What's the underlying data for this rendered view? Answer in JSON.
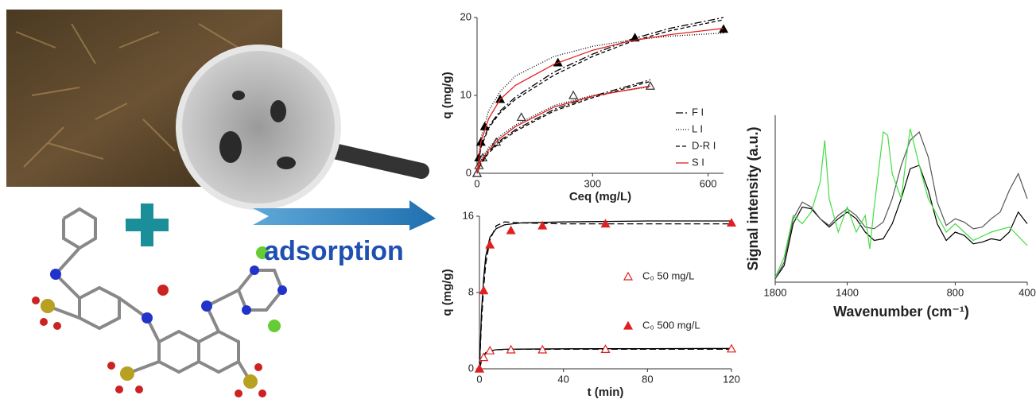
{
  "process_label": "adsorption",
  "chart_data": [
    {
      "type": "scatter",
      "x_label": "Ceq (mg/L)",
      "y_label": "q (mg/g)",
      "xlim": [
        0,
        640
      ],
      "xticks": [
        0,
        300,
        600
      ],
      "ylim": [
        0,
        20
      ],
      "yticks": [
        0,
        10,
        20
      ],
      "points": [
        {
          "marker": "filled-triangle",
          "color": "#000000",
          "x": [
            0,
            5,
            10,
            20,
            60,
            210,
            410,
            640
          ],
          "values": [
            0,
            2,
            4,
            6,
            9.5,
            14.2,
            17.4,
            18.5
          ]
        },
        {
          "marker": "open-triangle",
          "color": "#333333",
          "x": [
            0,
            5,
            15,
            50,
            115,
            250,
            450
          ],
          "values": [
            0,
            1,
            2,
            4,
            7.2,
            10,
            11.2
          ]
        }
      ],
      "series": [
        {
          "name": "F I",
          "color": "#000000",
          "dash": "9 3 2 3",
          "curves": [
            {
              "x": [
                0,
                10,
                30,
                60,
                100,
                200,
                300,
                400,
                500,
                640
              ],
              "values": [
                0,
                3.5,
                6,
                8,
                9.8,
                13,
                15.3,
                17.2,
                18.6,
                20
              ]
            },
            {
              "x": [
                0,
                10,
                30,
                60,
                100,
                200,
                300,
                450
              ],
              "values": [
                0,
                1.3,
                2.8,
                4.2,
                5.6,
                8.2,
                9.9,
                12
              ]
            }
          ]
        },
        {
          "name": "L I",
          "color": "#000000",
          "dash": "1 2",
          "curves": [
            {
              "x": [
                0,
                10,
                30,
                60,
                100,
                200,
                300,
                400,
                500,
                640
              ],
              "values": [
                0,
                4.5,
                8,
                10.5,
                12.5,
                15,
                16.3,
                17.1,
                17.6,
                18
              ]
            },
            {
              "x": [
                0,
                10,
                30,
                60,
                100,
                200,
                300,
                450
              ],
              "values": [
                0,
                1.7,
                3.3,
                4.8,
                6.2,
                8.7,
                10,
                11.1
              ]
            }
          ]
        },
        {
          "name": "D-R I",
          "color": "#000000",
          "dash": "5 3",
          "curves": [
            {
              "x": [
                0,
                10,
                30,
                60,
                100,
                200,
                300,
                400,
                500,
                640
              ],
              "values": [
                0,
                3.3,
                5.8,
                7.8,
                9.5,
                12.6,
                15,
                16.9,
                18.3,
                19.7
              ]
            },
            {
              "x": [
                0,
                10,
                30,
                60,
                100,
                200,
                300,
                450
              ],
              "values": [
                0,
                1.2,
                2.6,
                4,
                5.4,
                8,
                9.7,
                11.8
              ]
            }
          ]
        },
        {
          "name": "S I",
          "color": "#e02020",
          "dash": "none",
          "curves": [
            {
              "x": [
                0,
                10,
                30,
                60,
                100,
                200,
                300,
                400,
                500,
                640
              ],
              "values": [
                0,
                4,
                7,
                9.5,
                11.3,
                14,
                15.8,
                17,
                17.8,
                18.6
              ]
            },
            {
              "x": [
                0,
                10,
                30,
                60,
                100,
                200,
                300,
                450
              ],
              "values": [
                0,
                1.5,
                3,
                4.5,
                6,
                8.5,
                9.9,
                11.2
              ]
            }
          ]
        }
      ]
    },
    {
      "type": "scatter",
      "x_label": "t (min)",
      "y_label": "q (mg/g)",
      "xlim": [
        0,
        120
      ],
      "xticks": [
        0,
        40,
        80,
        120
      ],
      "ylim": [
        0,
        16
      ],
      "yticks": [
        0,
        8,
        16
      ],
      "series": [
        {
          "name": "C₀ 50 mg/L",
          "marker": "open-triangle",
          "color": "#e02020",
          "x": [
            0,
            2,
            5,
            15,
            30,
            60,
            120
          ],
          "values": [
            0,
            1.2,
            1.9,
            2,
            2,
            2.05,
            2.1
          ]
        },
        {
          "name": "C₀ 500 mg/L",
          "marker": "filled-triangle",
          "color": "#e02020",
          "x": [
            0,
            2,
            5,
            15,
            30,
            60,
            120
          ],
          "values": [
            0,
            8.2,
            13,
            14.5,
            15,
            15.2,
            15.3
          ]
        }
      ],
      "fits": [
        {
          "color": "#000000",
          "dash": "none",
          "curves": [
            {
              "x": [
                0,
                1,
                2,
                3,
                5,
                8,
                12,
                20,
                40,
                80,
                120
              ],
              "values": [
                0,
                0.9,
                1.4,
                1.7,
                1.9,
                2,
                2.05,
                2.07,
                2.1,
                2.12,
                2.13
              ]
            },
            {
              "x": [
                0,
                1,
                2,
                3,
                5,
                8,
                12,
                20,
                40,
                80,
                120
              ],
              "values": [
                0,
                6,
                9.5,
                11.8,
                13.8,
                14.7,
                15.1,
                15.3,
                15.4,
                15.5,
                15.5
              ]
            }
          ]
        },
        {
          "color": "#000000",
          "dash": "8 4",
          "curves": [
            {
              "x": [
                0,
                1,
                2,
                3,
                5,
                8,
                12,
                20,
                40,
                80,
                120
              ],
              "values": [
                0,
                0.8,
                1.3,
                1.6,
                1.85,
                2,
                2.03,
                2.05,
                2.06,
                2.06,
                2.06
              ]
            },
            {
              "x": [
                0,
                1,
                2,
                3,
                5,
                8,
                12,
                20,
                40,
                80,
                120
              ],
              "values": [
                0,
                5,
                8.5,
                11,
                13.5,
                15,
                15.4,
                15.3,
                15.2,
                15.2,
                15.2
              ]
            }
          ]
        }
      ]
    },
    {
      "type": "line",
      "x_label": "Wavenumber (cm⁻¹)",
      "y_label": "Signal intensity (a.u.)",
      "xlim": [
        1800,
        400
      ],
      "xticks": [
        1800,
        1400,
        800,
        400
      ],
      "ylim": [
        0,
        1
      ],
      "series": [
        {
          "color": "#000000",
          "x": [
            1800,
            1750,
            1700,
            1650,
            1600,
            1550,
            1500,
            1450,
            1400,
            1350,
            1300,
            1250,
            1200,
            1150,
            1100,
            1050,
            1000,
            950,
            900,
            850,
            800,
            750,
            700,
            650,
            600,
            550,
            500,
            450,
            400
          ],
          "values": [
            0.02,
            0.1,
            0.35,
            0.45,
            0.44,
            0.38,
            0.33,
            0.38,
            0.42,
            0.38,
            0.3,
            0.25,
            0.26,
            0.35,
            0.5,
            0.68,
            0.7,
            0.55,
            0.35,
            0.25,
            0.3,
            0.28,
            0.23,
            0.24,
            0.26,
            0.25,
            0.3,
            0.42,
            0.35
          ]
        },
        {
          "color": "#555555",
          "x": [
            1800,
            1750,
            1700,
            1650,
            1600,
            1550,
            1500,
            1450,
            1400,
            1350,
            1300,
            1250,
            1200,
            1150,
            1100,
            1050,
            1000,
            950,
            900,
            850,
            800,
            750,
            700,
            650,
            600,
            550,
            500,
            450,
            400
          ],
          "values": [
            0.02,
            0.12,
            0.38,
            0.48,
            0.45,
            0.38,
            0.34,
            0.4,
            0.44,
            0.4,
            0.33,
            0.32,
            0.36,
            0.5,
            0.7,
            0.85,
            0.9,
            0.75,
            0.48,
            0.34,
            0.38,
            0.36,
            0.32,
            0.33,
            0.38,
            0.42,
            0.55,
            0.65,
            0.5
          ]
        },
        {
          "color": "#44dd44",
          "x": [
            1800,
            1750,
            1700,
            1650,
            1600,
            1550,
            1525,
            1500,
            1475,
            1450,
            1400,
            1350,
            1300,
            1275,
            1250,
            1200,
            1175,
            1150,
            1100,
            1075,
            1050,
            1000,
            950,
            900,
            850,
            800,
            700,
            600,
            500,
            400
          ],
          "values": [
            0.03,
            0.15,
            0.4,
            0.35,
            0.42,
            0.6,
            0.85,
            0.5,
            0.4,
            0.3,
            0.45,
            0.3,
            0.4,
            0.2,
            0.45,
            0.9,
            0.88,
            0.65,
            0.5,
            0.72,
            0.92,
            0.7,
            0.5,
            0.4,
            0.3,
            0.35,
            0.25,
            0.3,
            0.33,
            0.22
          ]
        }
      ]
    }
  ]
}
